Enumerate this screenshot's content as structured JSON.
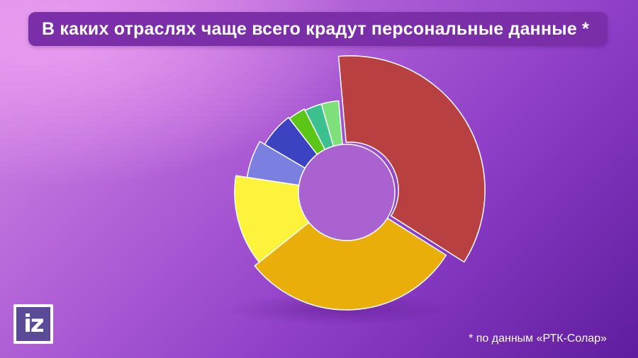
{
  "title": "В каких отраслях чаще всего крадут персональные данные *",
  "footnote": "* по данным «РТК-Солар»",
  "logo": {
    "text": "iz"
  },
  "chart_data": {
    "type": "pie",
    "variant": "donut",
    "title": "В каких отраслях чаще всего крадут персональные данные *",
    "start_angle_deg": -5,
    "direction": "clockwise",
    "labels_shown": false,
    "segments": [
      {
        "value": 35,
        "color": "#b94040",
        "name": ""
      },
      {
        "value": 30,
        "color": "#eaae0a",
        "name": ""
      },
      {
        "value": 13,
        "color": "#fdf23c",
        "name": ""
      },
      {
        "value": 6,
        "color": "#7b7fe0",
        "name": ""
      },
      {
        "value": 6,
        "color": "#3c43c0",
        "name": ""
      },
      {
        "value": 3,
        "color": "#5cc616",
        "name": ""
      },
      {
        "value": 3,
        "color": "#3cc090",
        "name": ""
      },
      {
        "value": 3,
        "color": "#7ee07a",
        "name": ""
      }
    ],
    "exploded_segment_index": 0,
    "hole_color": "#a962d0"
  }
}
